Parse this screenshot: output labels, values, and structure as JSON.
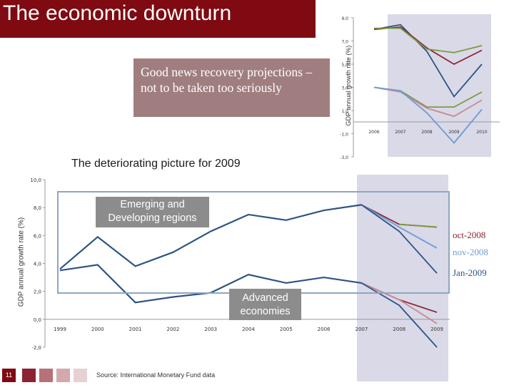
{
  "title": "The economic downturn",
  "callout": "Good news recovery projections – not to be taken too seriously",
  "subtitle": "The deteriorating picture for 2009",
  "labels": {
    "emerging": "Emerging and Developing regions",
    "advanced": "Advanced economies"
  },
  "footer": {
    "page": "11",
    "source": "Source: International Monetary Fund data"
  },
  "colors": {
    "brand": "#7f0a12",
    "series": [
      "#8b2332",
      "#2e5485",
      "#6f9bd4",
      "#7b9a42",
      "#c98a94"
    ],
    "shade": "#d9d9e8"
  },
  "chart_data": [
    {
      "type": "line",
      "ylabel": "GDP annual growth rate (%)",
      "x": [
        2006,
        2007,
        2008,
        2009,
        2010
      ],
      "yticks": [
        "9,0",
        "7,0",
        "5,0",
        "3,0",
        "1,0",
        "-1,0",
        "-3,0"
      ],
      "ylim": [
        -3,
        9
      ],
      "shaded_from": 2007.5,
      "series_groups": [
        {
          "group": "upper",
          "series": [
            {
              "values": [
                8.0,
                8.4,
                6.1,
                2.2,
                5.0
              ]
            },
            {
              "values": [
                8.0,
                8.2,
                6.4,
                5.0,
                6.2
              ]
            },
            {
              "values": [
                8.1,
                8.1,
                6.3,
                6.0,
                6.6
              ]
            }
          ]
        },
        {
          "group": "lower",
          "series": [
            {
              "values": [
                3.0,
                2.7,
                1.3,
                1.3,
                2.6
              ]
            },
            {
              "values": [
                3.0,
                2.6,
                1.2,
                0.5,
                1.9
              ]
            },
            {
              "values": [
                3.0,
                2.7,
                0.8,
                -1.8,
                1.1
              ]
            }
          ]
        }
      ]
    },
    {
      "type": "line",
      "ylabel": "GDP annual growth rate (%)",
      "x": [
        1999,
        2000,
        2001,
        2002,
        2003,
        2004,
        2005,
        2006,
        2007,
        2008,
        2009
      ],
      "yticks": [
        "10,0",
        "8,0",
        "6,0",
        "4,0",
        "2,0",
        "0,0",
        "-2,0"
      ],
      "ylim": [
        -2,
        10
      ],
      "shaded_from": 2007,
      "history": [
        {
          "region": "emerging",
          "values": [
            3.6,
            5.9,
            3.8,
            4.8,
            6.3,
            7.5,
            7.1,
            7.8,
            8.2
          ]
        },
        {
          "region": "advanced",
          "values": [
            3.5,
            3.9,
            1.2,
            1.6,
            1.9,
            3.2,
            2.6,
            3.0,
            2.6
          ]
        }
      ],
      "projections": [
        {
          "name": "oct-2008",
          "emerging": [
            6.8,
            6.6
          ],
          "advanced": [
            1.4,
            0.5
          ]
        },
        {
          "name": "nov-2008",
          "emerging": [
            6.6,
            5.1
          ],
          "advanced": [
            1.4,
            -0.3
          ]
        },
        {
          "name": "Jan-2009",
          "emerging": [
            6.3,
            3.3
          ],
          "advanced": [
            1.0,
            -2.0
          ]
        }
      ]
    }
  ]
}
